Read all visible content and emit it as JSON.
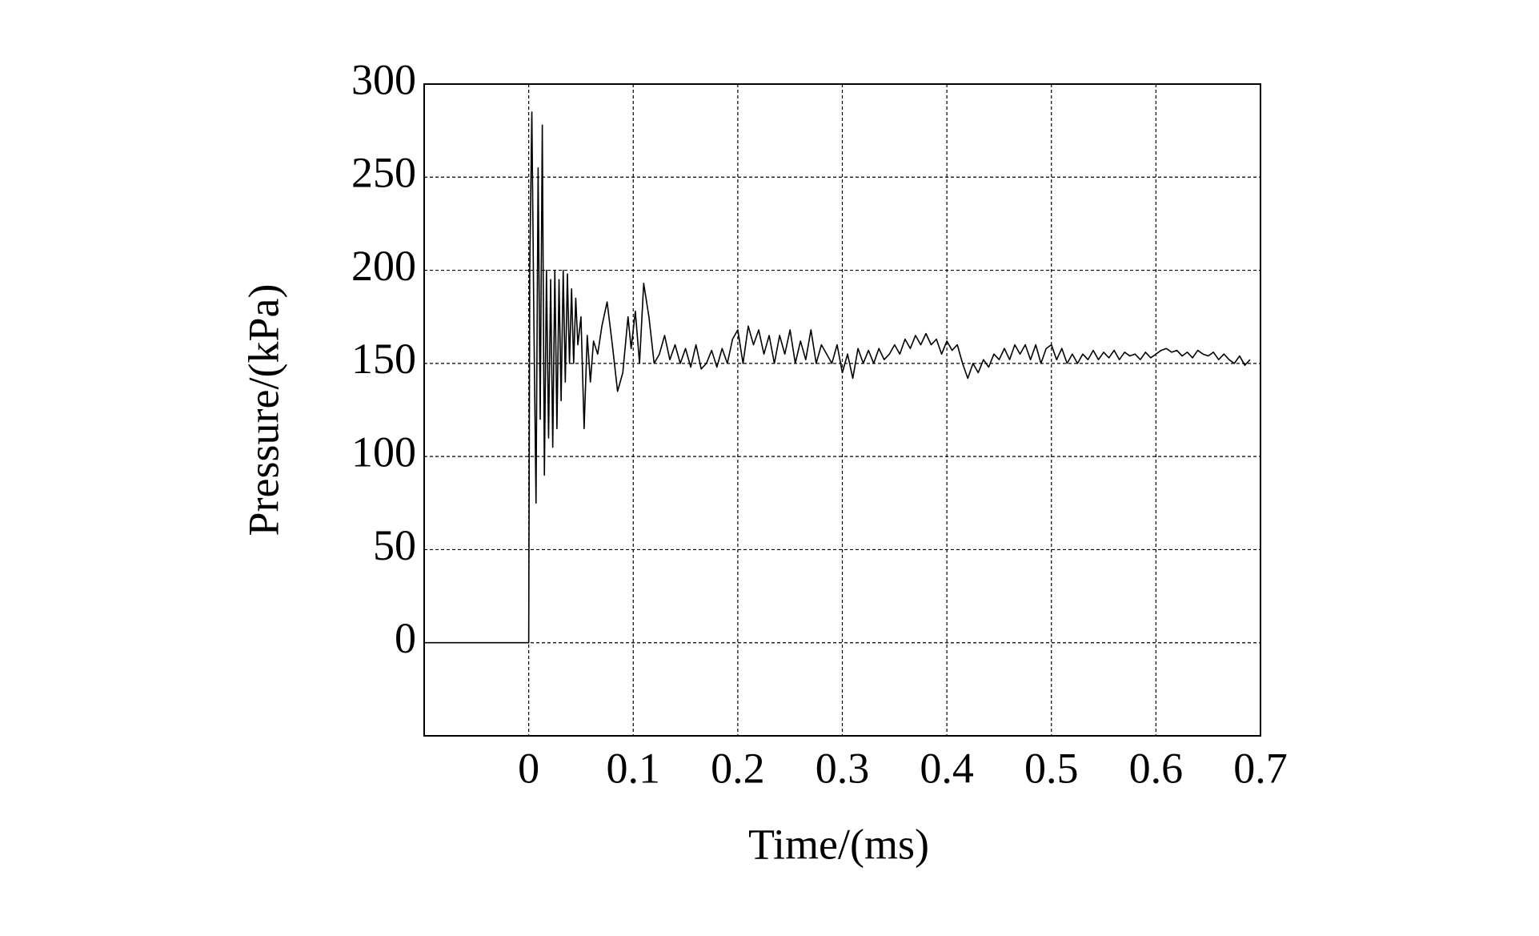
{
  "chart_data": {
    "type": "line",
    "xlabel": "Time/(ms)",
    "ylabel": "Pressure/(kPa)",
    "xlim": [
      -0.1,
      0.7
    ],
    "xticks": [
      0,
      0.1,
      0.2,
      0.3,
      0.4,
      0.5,
      0.6,
      0.7
    ],
    "ylim": [
      -50,
      300
    ],
    "yticks": [
      0,
      50,
      100,
      150,
      200,
      250,
      300
    ],
    "grid": true,
    "color": "#000000",
    "x": [
      -0.1,
      -0.05,
      0,
      0.001,
      0.003,
      0.005,
      0.007,
      0.009,
      0.011,
      0.013,
      0.015,
      0.017,
      0.019,
      0.021,
      0.023,
      0.025,
      0.027,
      0.029,
      0.031,
      0.033,
      0.035,
      0.037,
      0.039,
      0.041,
      0.043,
      0.045,
      0.047,
      0.05,
      0.053,
      0.056,
      0.059,
      0.062,
      0.066,
      0.07,
      0.075,
      0.08,
      0.085,
      0.09,
      0.095,
      0.098,
      0.102,
      0.106,
      0.11,
      0.115,
      0.12,
      0.125,
      0.13,
      0.135,
      0.14,
      0.145,
      0.15,
      0.155,
      0.16,
      0.165,
      0.17,
      0.175,
      0.18,
      0.185,
      0.19,
      0.195,
      0.2,
      0.205,
      0.21,
      0.215,
      0.22,
      0.225,
      0.23,
      0.235,
      0.24,
      0.245,
      0.25,
      0.255,
      0.26,
      0.265,
      0.27,
      0.275,
      0.28,
      0.285,
      0.29,
      0.295,
      0.3,
      0.305,
      0.31,
      0.315,
      0.32,
      0.325,
      0.33,
      0.335,
      0.34,
      0.345,
      0.35,
      0.355,
      0.36,
      0.365,
      0.37,
      0.375,
      0.38,
      0.385,
      0.39,
      0.395,
      0.4,
      0.405,
      0.41,
      0.415,
      0.42,
      0.425,
      0.43,
      0.435,
      0.44,
      0.445,
      0.45,
      0.455,
      0.46,
      0.465,
      0.47,
      0.475,
      0.48,
      0.485,
      0.49,
      0.495,
      0.5,
      0.505,
      0.51,
      0.515,
      0.52,
      0.525,
      0.53,
      0.535,
      0.54,
      0.545,
      0.55,
      0.555,
      0.56,
      0.565,
      0.57,
      0.575,
      0.58,
      0.585,
      0.59,
      0.595,
      0.6,
      0.605,
      0.61,
      0.615,
      0.62,
      0.625,
      0.63,
      0.635,
      0.64,
      0.645,
      0.65,
      0.655,
      0.66,
      0.665,
      0.67,
      0.675,
      0.68,
      0.685,
      0.69
    ],
    "values": [
      0,
      0,
      0,
      200,
      285,
      170,
      75,
      255,
      120,
      278,
      90,
      200,
      110,
      195,
      105,
      200,
      115,
      195,
      130,
      200,
      140,
      198,
      150,
      190,
      150,
      185,
      160,
      175,
      115,
      165,
      140,
      162,
      155,
      170,
      183,
      160,
      135,
      145,
      175,
      158,
      178,
      150,
      193,
      175,
      150,
      155,
      165,
      152,
      160,
      150,
      158,
      148,
      160,
      147,
      150,
      157,
      148,
      158,
      150,
      163,
      168,
      150,
      170,
      160,
      168,
      155,
      165,
      150,
      165,
      155,
      168,
      150,
      162,
      152,
      168,
      150,
      160,
      155,
      150,
      160,
      145,
      155,
      142,
      158,
      150,
      157,
      150,
      158,
      152,
      155,
      160,
      155,
      163,
      158,
      165,
      160,
      166,
      160,
      163,
      155,
      162,
      157,
      160,
      150,
      142,
      150,
      145,
      152,
      148,
      155,
      152,
      158,
      152,
      160,
      155,
      160,
      152,
      160,
      150,
      158,
      160,
      152,
      158,
      150,
      155,
      150,
      155,
      152,
      157,
      152,
      156,
      153,
      157,
      152,
      156,
      154,
      155,
      152,
      156,
      153,
      155,
      157,
      158,
      156,
      157,
      154,
      156,
      153,
      157,
      155,
      154,
      156,
      152,
      155,
      152,
      150,
      154,
      149,
      152
    ]
  }
}
